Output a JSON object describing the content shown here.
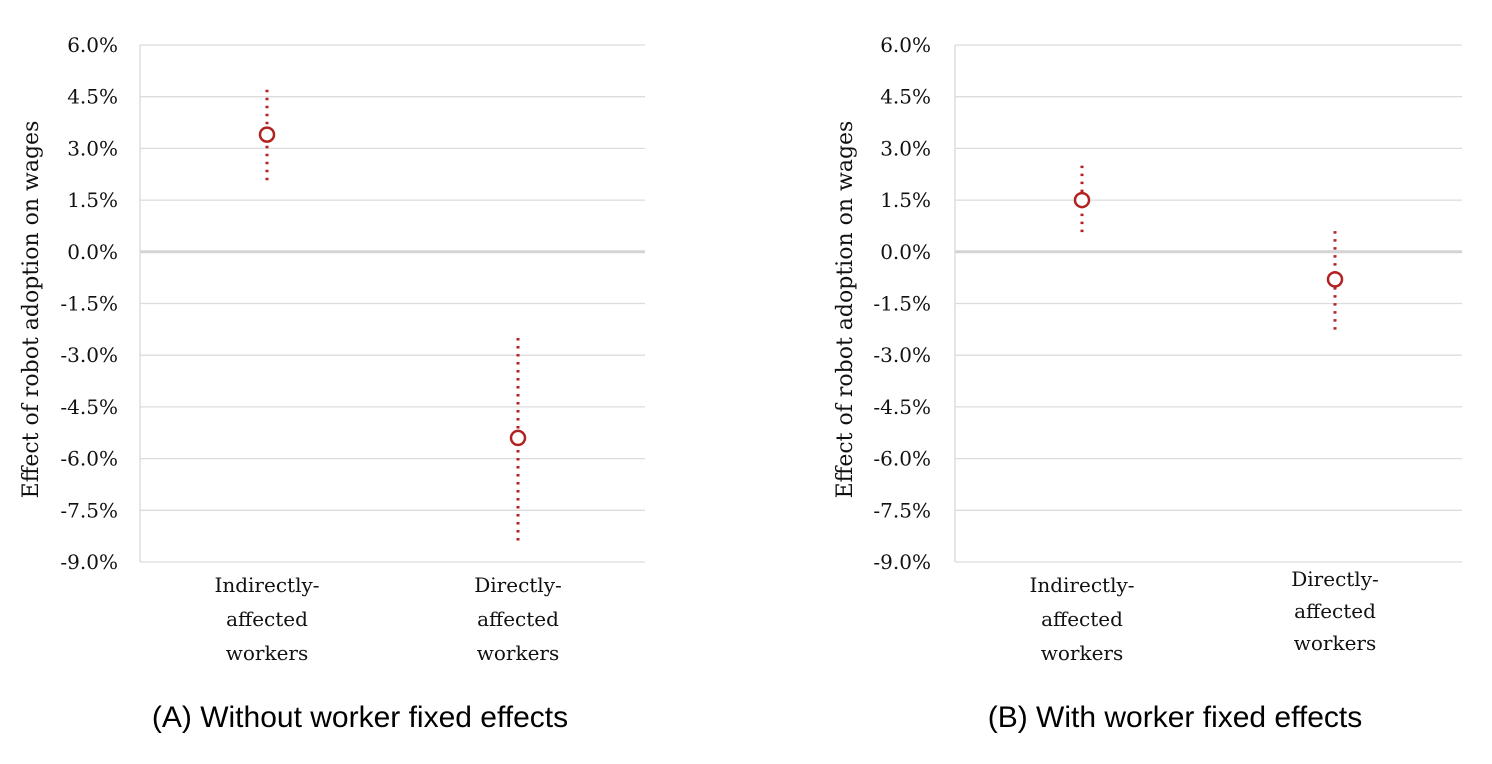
{
  "chart_data": [
    {
      "type": "errorbar",
      "title": "(A) Without worker fixed effects",
      "ylabel": "Effect of robot adoption on wages",
      "ylim": [
        -9.0,
        6.0
      ],
      "yticks": [
        "6.0%",
        "4.5%",
        "3.0%",
        "1.5%",
        "0.0%",
        "-1.5%",
        "-3.0%",
        "-4.5%",
        "-6.0%",
        "-7.5%",
        "-9.0%"
      ],
      "ytick_values": [
        6.0,
        4.5,
        3.0,
        1.5,
        0.0,
        -1.5,
        -3.0,
        -4.5,
        -6.0,
        -7.5,
        -9.0
      ],
      "categories": [
        {
          "lines": [
            "Indirectly-",
            "affected",
            "workers"
          ]
        },
        {
          "lines": [
            "Directly-",
            "affected",
            "workers"
          ]
        }
      ],
      "estimates": [
        3.4,
        -5.4
      ],
      "ci_low": [
        2.0,
        -8.4
      ],
      "ci_high": [
        4.7,
        -2.5
      ],
      "color": "#b22222"
    },
    {
      "type": "errorbar",
      "title": "(B) With worker fixed effects",
      "ylabel": "Effect of robot adoption on wages",
      "ylim": [
        -9.0,
        6.0
      ],
      "yticks": [
        "6.0%",
        "4.5%",
        "3.0%",
        "1.5%",
        "0.0%",
        "-1.5%",
        "-3.0%",
        "-4.5%",
        "-6.0%",
        "-7.5%",
        "-9.0%"
      ],
      "ytick_values": [
        6.0,
        4.5,
        3.0,
        1.5,
        0.0,
        -1.5,
        -3.0,
        -4.5,
        -6.0,
        -7.5,
        -9.0
      ],
      "categories": [
        {
          "lines": [
            "Indirectly-",
            "affected",
            "workers"
          ]
        },
        {
          "lines": [
            "Directly-",
            "affected",
            "workers"
          ]
        }
      ],
      "estimates": [
        1.5,
        -0.8
      ],
      "ci_low": [
        0.5,
        -2.4
      ],
      "ci_high": [
        2.5,
        0.6
      ],
      "color": "#b22222"
    }
  ]
}
